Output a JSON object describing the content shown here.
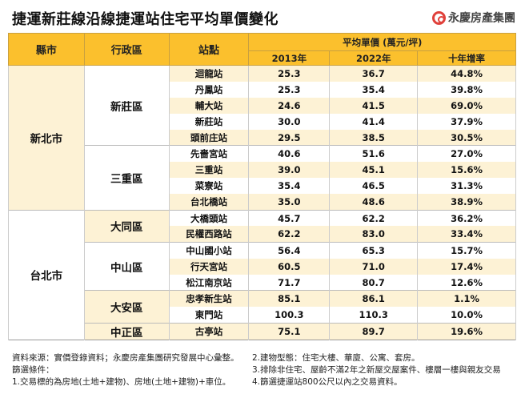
{
  "title": "捷運新莊線沿線捷運站住宅平均單價變化",
  "logo": {
    "text": "永慶房產集團",
    "icon": "yungching-logo-icon",
    "color": "#e0403a"
  },
  "colors": {
    "header": "#fbc02d",
    "stripe": "#fdf2d5"
  },
  "table": {
    "headers": {
      "county": "縣市",
      "district": "行政區",
      "station": "站點",
      "price_group": "平均單價 (萬元/坪)",
      "y2013": "2013年",
      "y2022": "2022年",
      "growth": "十年增率"
    },
    "groups": [
      {
        "county": "新北市",
        "districts": [
          {
            "name": "新莊區",
            "rows": [
              {
                "station": "迴龍站",
                "p2013": "25.3",
                "p2022": "36.7",
                "growth": "44.8%"
              },
              {
                "station": "丹鳳站",
                "p2013": "25.3",
                "p2022": "35.4",
                "growth": "39.8%"
              },
              {
                "station": "輔大站",
                "p2013": "24.6",
                "p2022": "41.5",
                "growth": "69.0%"
              },
              {
                "station": "新莊站",
                "p2013": "30.0",
                "p2022": "41.4",
                "growth": "37.9%"
              },
              {
                "station": "頭前庄站",
                "p2013": "29.5",
                "p2022": "38.5",
                "growth": "30.5%"
              }
            ]
          },
          {
            "name": "三重區",
            "rows": [
              {
                "station": "先嗇宮站",
                "p2013": "40.6",
                "p2022": "51.6",
                "growth": "27.0%"
              },
              {
                "station": "三重站",
                "p2013": "39.0",
                "p2022": "45.1",
                "growth": "15.6%"
              },
              {
                "station": "菜寮站",
                "p2013": "35.4",
                "p2022": "46.5",
                "growth": "31.3%"
              },
              {
                "station": "台北橋站",
                "p2013": "35.0",
                "p2022": "48.6",
                "growth": "38.9%"
              }
            ]
          }
        ]
      },
      {
        "county": "台北市",
        "districts": [
          {
            "name": "大同區",
            "rows": [
              {
                "station": "大橋頭站",
                "p2013": "45.7",
                "p2022": "62.2",
                "growth": "36.2%"
              },
              {
                "station": "民權西路站",
                "p2013": "62.2",
                "p2022": "83.0",
                "growth": "33.4%"
              }
            ]
          },
          {
            "name": "中山區",
            "rows": [
              {
                "station": "中山國小站",
                "p2013": "56.4",
                "p2022": "65.3",
                "growth": "15.7%"
              },
              {
                "station": "行天宮站",
                "p2013": "60.5",
                "p2022": "71.0",
                "growth": "17.4%"
              },
              {
                "station": "松江南京站",
                "p2013": "71.7",
                "p2022": "80.7",
                "growth": "12.6%"
              }
            ]
          },
          {
            "name": "大安區",
            "rows": [
              {
                "station": "忠孝新生站",
                "p2013": "85.1",
                "p2022": "86.1",
                "growth": "1.1%"
              },
              {
                "station": "東門站",
                "p2013": "100.3",
                "p2022": "110.3",
                "growth": "10.0%"
              }
            ]
          },
          {
            "name": "中正區",
            "rows": [
              {
                "station": "古亭站",
                "p2013": "75.1",
                "p2022": "89.7",
                "growth": "19.6%"
              }
            ]
          }
        ]
      }
    ]
  },
  "notes": {
    "source": "資料來源：實價登錄資料；永慶房產集團研究發展中心彙整。",
    "filter_label": "篩選條件：",
    "n1": "1.交易標的為房地(土地+建物)、房地(土地+建物)+車位。",
    "n2": "2.建物型態：住宅大樓、華廈、公寓、套房。",
    "n3": "3.排除非住宅、屋齡不滿2年之新屋交屋案件、樓層一樓與親友交易",
    "n4": "4.篩選捷運站800公尺以內之交易資料。"
  }
}
